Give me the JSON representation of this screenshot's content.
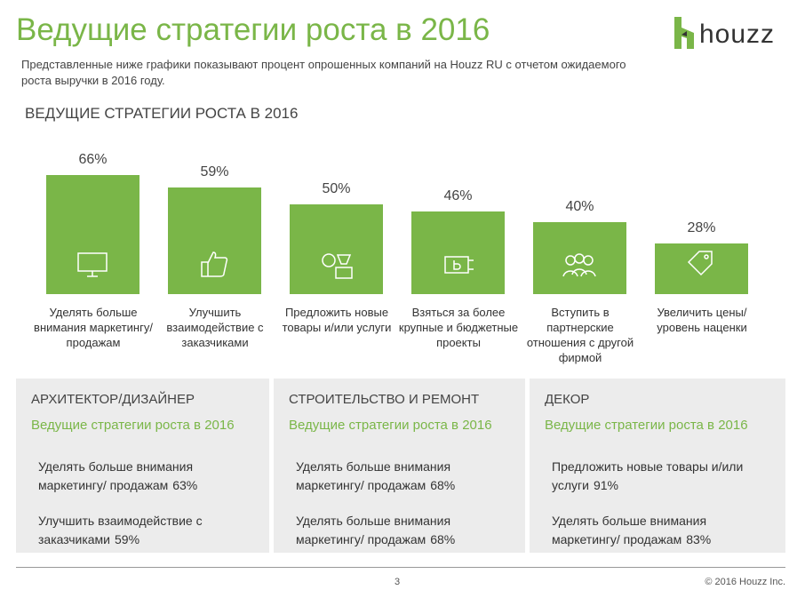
{
  "header": {
    "title": "Ведущие стратегии роста в 2016",
    "logo": "houzz",
    "subtitle": "Представленные ниже графики показывают процент опрошенных компаний на Houzz RU с отчетом ожидаемого роста выручки в 2016 году."
  },
  "chart_data": {
    "type": "bar",
    "title": "ВЕДУЩИЕ СТРАТЕГИИ РОСТА В 2016",
    "color": "#7ab648",
    "categories": [
      "Уделять больше внимания маркетингу/ продажам",
      "Улучшить взаимодействие с заказчиками",
      "Предложить новые товары и/или услуги",
      "Взяться за более крупные и бюджетные проекты",
      "Вступить в партнерские отношения с другой фирмой",
      "Увеличить цены/ уровень наценки"
    ],
    "values": [
      66,
      59,
      50,
      46,
      40,
      28
    ],
    "value_labels": [
      "66%",
      "59%",
      "50%",
      "46%",
      "40%",
      "28%"
    ]
  },
  "panels": [
    {
      "title": "АРХИТЕКТОР/ДИЗАЙНЕР",
      "subtitle": "Ведущие стратегии роста в 2016",
      "items": [
        {
          "text": "Уделять больше внимания маркетингу/ продажам",
          "value": "63%"
        },
        {
          "text": "Улучшить взаимодействие с заказчиками",
          "value": "59%"
        }
      ]
    },
    {
      "title": "СТРОИТЕЛЬСТВО И РЕМОНТ",
      "subtitle": "Ведущие стратегии роста в 2016",
      "items": [
        {
          "text": "Уделять больше внимания маркетингу/ продажам",
          "value": "68%"
        },
        {
          "text": "Уделять больше внимания маркетингу/ продажам",
          "value": "68%"
        }
      ]
    },
    {
      "title": "ДЕКОР",
      "subtitle": "Ведущие стратегии роста в 2016",
      "items": [
        {
          "text": "Предложить новые товары и/или услуги",
          "value": "91%"
        },
        {
          "text": "Уделять больше внимания маркетингу/ продажам",
          "value": "83%"
        }
      ]
    }
  ],
  "footer": {
    "page": "3",
    "copyright": "© 2016 Houzz Inc."
  }
}
